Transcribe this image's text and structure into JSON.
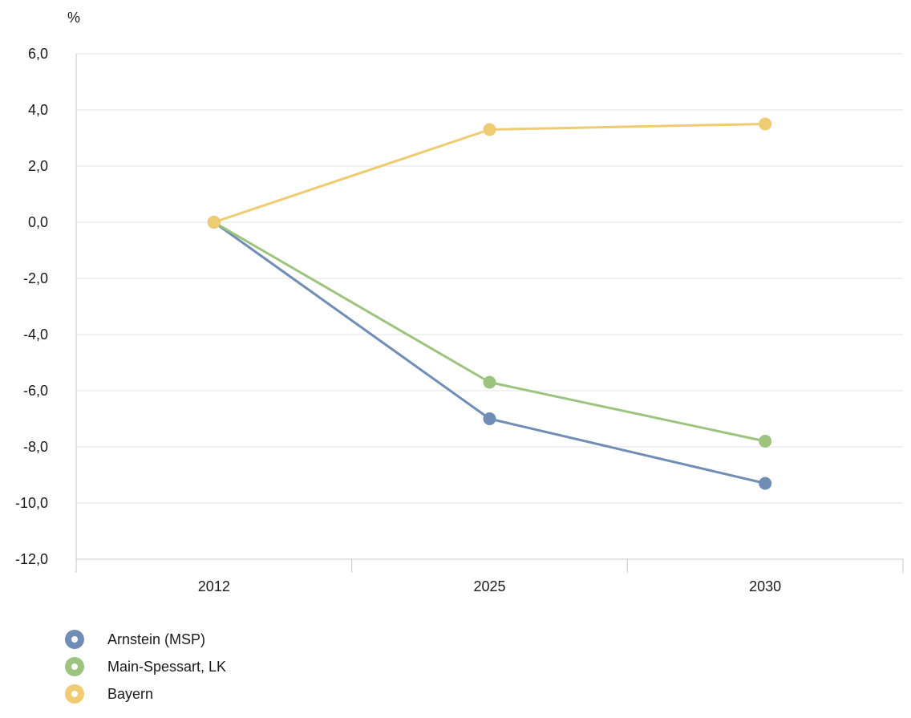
{
  "chart_data": {
    "type": "line",
    "unit_label": "%",
    "categories": [
      "2012",
      "2025",
      "2030"
    ],
    "ylim": [
      -12,
      6
    ],
    "yticks": [
      6,
      4,
      2,
      0,
      -2,
      -4,
      -6,
      -8,
      -10,
      -12
    ],
    "ytick_labels": [
      "6,0",
      "4,0",
      "2,0",
      "0,0",
      "-2,0",
      "-4,0",
      "-6,0",
      "-8,0",
      "-10,0",
      "-12,0"
    ],
    "grid": true,
    "legend_position": "bottom-left",
    "series": [
      {
        "name": "Arnstein (MSP)",
        "color": "#6f8db5",
        "values": [
          0.0,
          -7.0,
          -9.3
        ]
      },
      {
        "name": "Main-Spessart, LK",
        "color": "#9cc47e",
        "values": [
          0.0,
          -5.7,
          -7.8
        ]
      },
      {
        "name": "Bayern",
        "color": "#efcb72",
        "values": [
          0.0,
          3.3,
          3.5
        ]
      }
    ]
  }
}
